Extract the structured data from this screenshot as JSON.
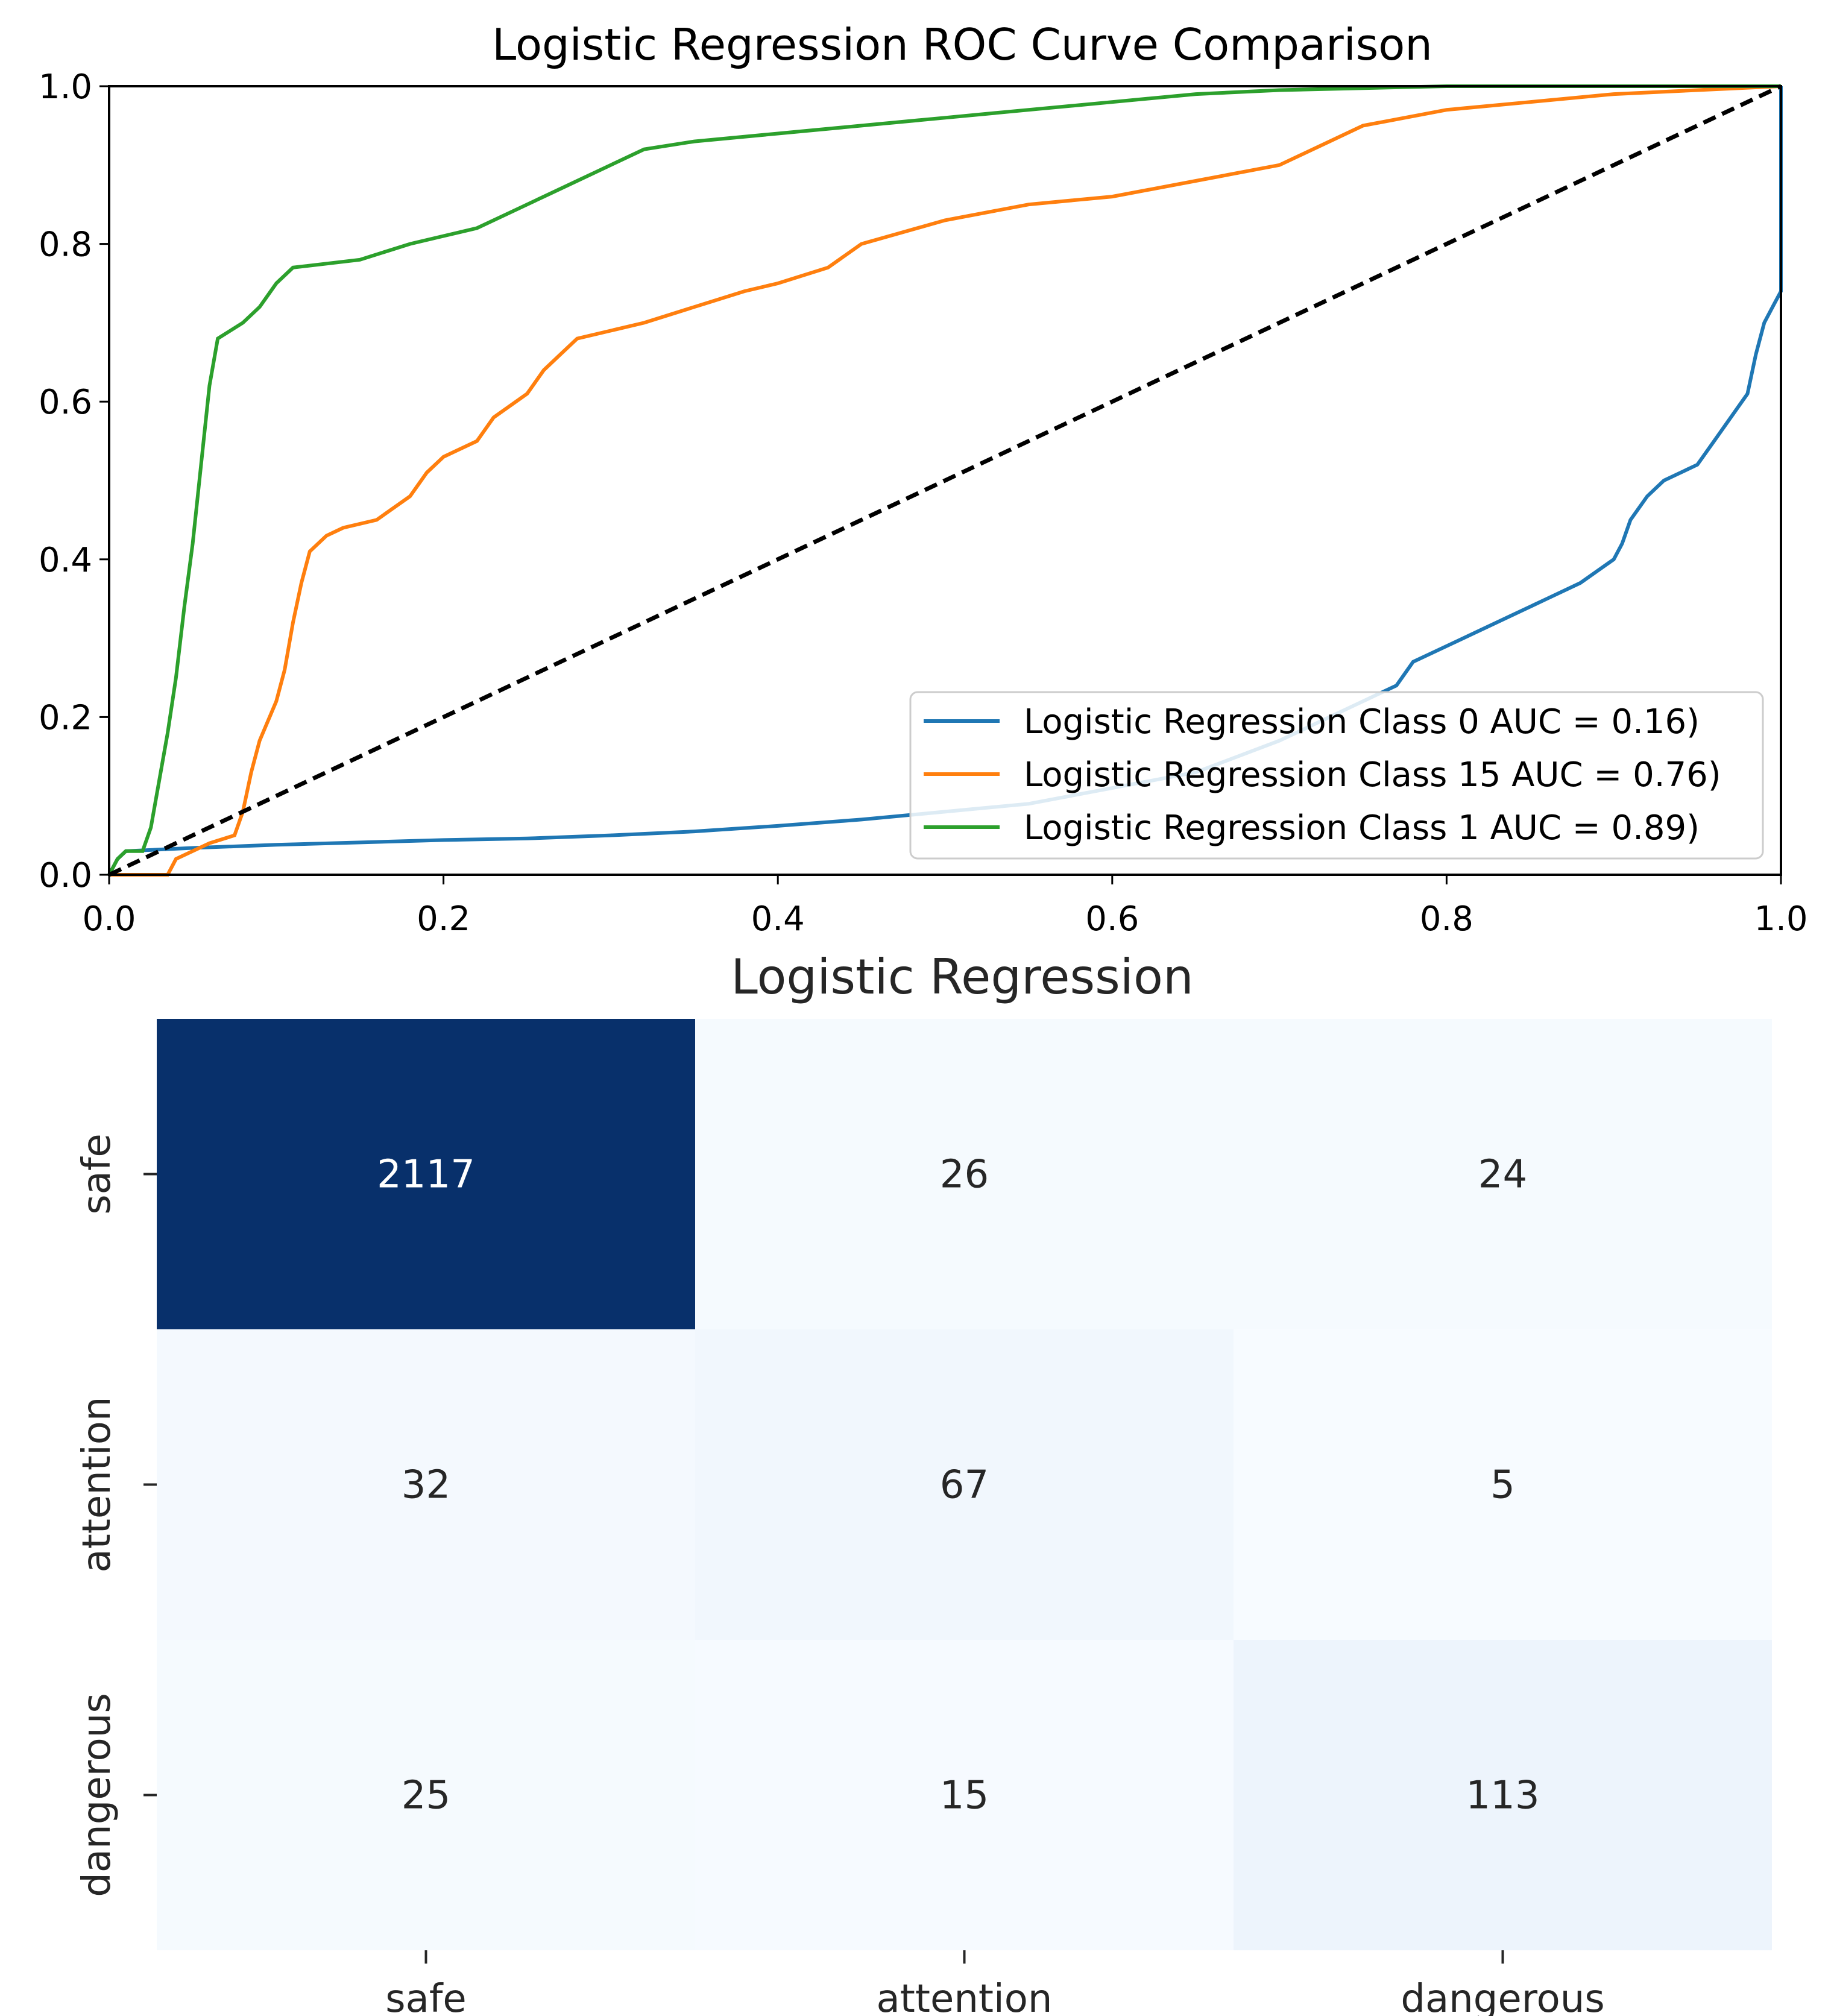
{
  "chart_data": [
    {
      "type": "line",
      "title": "Logistic Regression ROC Curve Comparison",
      "xlabel": "",
      "ylabel": "",
      "xlim": [
        0,
        1
      ],
      "ylim": [
        0,
        1
      ],
      "x_ticks": [
        "0.0",
        "0.2",
        "0.4",
        "0.6",
        "0.8",
        "1.0"
      ],
      "y_ticks": [
        "0.0",
        "0.2",
        "0.4",
        "0.6",
        "0.8",
        "1.0"
      ],
      "grid": false,
      "legend_position": "lower-right",
      "series": [
        {
          "name": "Logistic Regression Class 0 AUC = 0.16)",
          "color": "#1f77b4",
          "points": [
            [
              0,
              0
            ],
            [
              0.005,
              0.02
            ],
            [
              0.01,
              0.03
            ],
            [
              0.05,
              0.034
            ],
            [
              0.1,
              0.038
            ],
            [
              0.15,
              0.041
            ],
            [
              0.2,
              0.044
            ],
            [
              0.25,
              0.046
            ],
            [
              0.3,
              0.05
            ],
            [
              0.35,
              0.055
            ],
            [
              0.4,
              0.062
            ],
            [
              0.45,
              0.07
            ],
            [
              0.5,
              0.08
            ],
            [
              0.55,
              0.09
            ],
            [
              0.6,
              0.11
            ],
            [
              0.65,
              0.13
            ],
            [
              0.7,
              0.17
            ],
            [
              0.75,
              0.22
            ],
            [
              0.77,
              0.24
            ],
            [
              0.78,
              0.27
            ],
            [
              0.8,
              0.29
            ],
            [
              0.82,
              0.31
            ],
            [
              0.84,
              0.33
            ],
            [
              0.86,
              0.35
            ],
            [
              0.88,
              0.37
            ],
            [
              0.9,
              0.4
            ],
            [
              0.905,
              0.42
            ],
            [
              0.91,
              0.45
            ],
            [
              0.92,
              0.48
            ],
            [
              0.93,
              0.5
            ],
            [
              0.95,
              0.52
            ],
            [
              0.96,
              0.55
            ],
            [
              0.97,
              0.58
            ],
            [
              0.98,
              0.61
            ],
            [
              0.985,
              0.66
            ],
            [
              0.99,
              0.7
            ],
            [
              0.995,
              0.72
            ],
            [
              1.0,
              0.74
            ],
            [
              1.0,
              1.0
            ]
          ]
        },
        {
          "name": "Logistic Regression Class 15 AUC = 0.76)",
          "color": "#ff7f0e",
          "points": [
            [
              0,
              0
            ],
            [
              0.02,
              0
            ],
            [
              0.035,
              0
            ],
            [
              0.04,
              0.02
            ],
            [
              0.06,
              0.04
            ],
            [
              0.075,
              0.05
            ],
            [
              0.08,
              0.08
            ],
            [
              0.085,
              0.13
            ],
            [
              0.09,
              0.17
            ],
            [
              0.1,
              0.22
            ],
            [
              0.105,
              0.26
            ],
            [
              0.11,
              0.32
            ],
            [
              0.115,
              0.37
            ],
            [
              0.12,
              0.41
            ],
            [
              0.13,
              0.43
            ],
            [
              0.14,
              0.44
            ],
            [
              0.16,
              0.45
            ],
            [
              0.18,
              0.48
            ],
            [
              0.19,
              0.51
            ],
            [
              0.2,
              0.53
            ],
            [
              0.22,
              0.55
            ],
            [
              0.23,
              0.58
            ],
            [
              0.25,
              0.61
            ],
            [
              0.26,
              0.64
            ],
            [
              0.27,
              0.66
            ],
            [
              0.28,
              0.68
            ],
            [
              0.3,
              0.69
            ],
            [
              0.32,
              0.7
            ],
            [
              0.35,
              0.72
            ],
            [
              0.38,
              0.74
            ],
            [
              0.4,
              0.75
            ],
            [
              0.43,
              0.77
            ],
            [
              0.45,
              0.8
            ],
            [
              0.5,
              0.83
            ],
            [
              0.55,
              0.85
            ],
            [
              0.6,
              0.86
            ],
            [
              0.65,
              0.88
            ],
            [
              0.7,
              0.9
            ],
            [
              0.73,
              0.93
            ],
            [
              0.75,
              0.95
            ],
            [
              0.8,
              0.97
            ],
            [
              0.85,
              0.98
            ],
            [
              0.9,
              0.99
            ],
            [
              1.0,
              1.0
            ]
          ]
        },
        {
          "name": "Logistic Regression Class 1 AUC = 0.89)",
          "color": "#2ca02c",
          "points": [
            [
              0,
              0
            ],
            [
              0.005,
              0.02
            ],
            [
              0.01,
              0.03
            ],
            [
              0.02,
              0.03
            ],
            [
              0.025,
              0.06
            ],
            [
              0.03,
              0.12
            ],
            [
              0.035,
              0.18
            ],
            [
              0.04,
              0.25
            ],
            [
              0.045,
              0.34
            ],
            [
              0.05,
              0.42
            ],
            [
              0.055,
              0.52
            ],
            [
              0.06,
              0.62
            ],
            [
              0.065,
              0.68
            ],
            [
              0.08,
              0.7
            ],
            [
              0.09,
              0.72
            ],
            [
              0.1,
              0.75
            ],
            [
              0.11,
              0.77
            ],
            [
              0.15,
              0.78
            ],
            [
              0.18,
              0.8
            ],
            [
              0.2,
              0.81
            ],
            [
              0.22,
              0.82
            ],
            [
              0.24,
              0.84
            ],
            [
              0.26,
              0.86
            ],
            [
              0.28,
              0.88
            ],
            [
              0.3,
              0.9
            ],
            [
              0.32,
              0.92
            ],
            [
              0.35,
              0.93
            ],
            [
              0.4,
              0.94
            ],
            [
              0.45,
              0.95
            ],
            [
              0.5,
              0.96
            ],
            [
              0.55,
              0.97
            ],
            [
              0.6,
              0.98
            ],
            [
              0.65,
              0.99
            ],
            [
              0.7,
              0.995
            ],
            [
              0.8,
              1.0
            ],
            [
              1.0,
              1.0
            ]
          ]
        },
        {
          "name": "",
          "color": "#000000",
          "style": "dashed",
          "points": [
            [
              0,
              0
            ],
            [
              1,
              1
            ]
          ]
        }
      ]
    },
    {
      "type": "heatmap",
      "title": "Logistic Regression",
      "x_categories": [
        "safe",
        "attention",
        "dangerous"
      ],
      "y_categories": [
        "safe",
        "attention",
        "dangerous"
      ],
      "values": [
        [
          2117,
          26,
          24
        ],
        [
          32,
          67,
          5
        ],
        [
          25,
          15,
          113
        ]
      ],
      "colormap": "Blues",
      "colorbar": false
    }
  ]
}
